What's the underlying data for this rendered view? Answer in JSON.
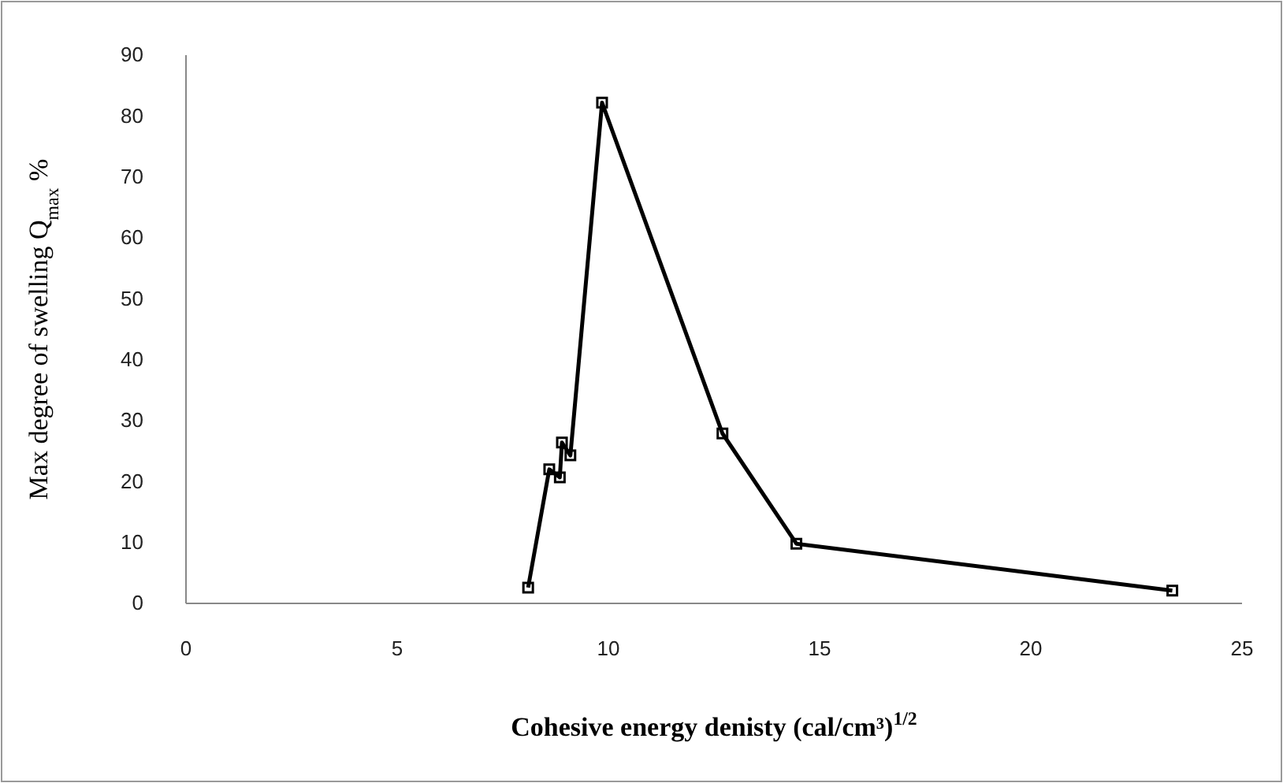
{
  "chart_data": {
    "type": "line",
    "xlabel": "Cohesive energy denisty (cal/cm³)$^{1/2}$",
    "ylabel": "Max degree of swelling Q$_{max}$ %",
    "x": [
      8.1,
      8.6,
      8.85,
      8.9,
      9.1,
      9.85,
      12.7,
      14.45,
      23.35
    ],
    "series": [
      {
        "color": "#000000",
        "values": [
          2.6,
          22,
          20.7,
          26.4,
          24.3,
          82.2,
          27.9,
          9.8,
          2.1
        ]
      }
    ],
    "xlim": [
      0,
      25
    ],
    "xticks": [
      0,
      5,
      10,
      15,
      20,
      25
    ],
    "ylim": [
      0,
      90
    ],
    "yticks": [
      0,
      10,
      20,
      30,
      40,
      50,
      60,
      70,
      80,
      90
    ],
    "grid": false,
    "marker": "square",
    "line_style": "solid"
  }
}
